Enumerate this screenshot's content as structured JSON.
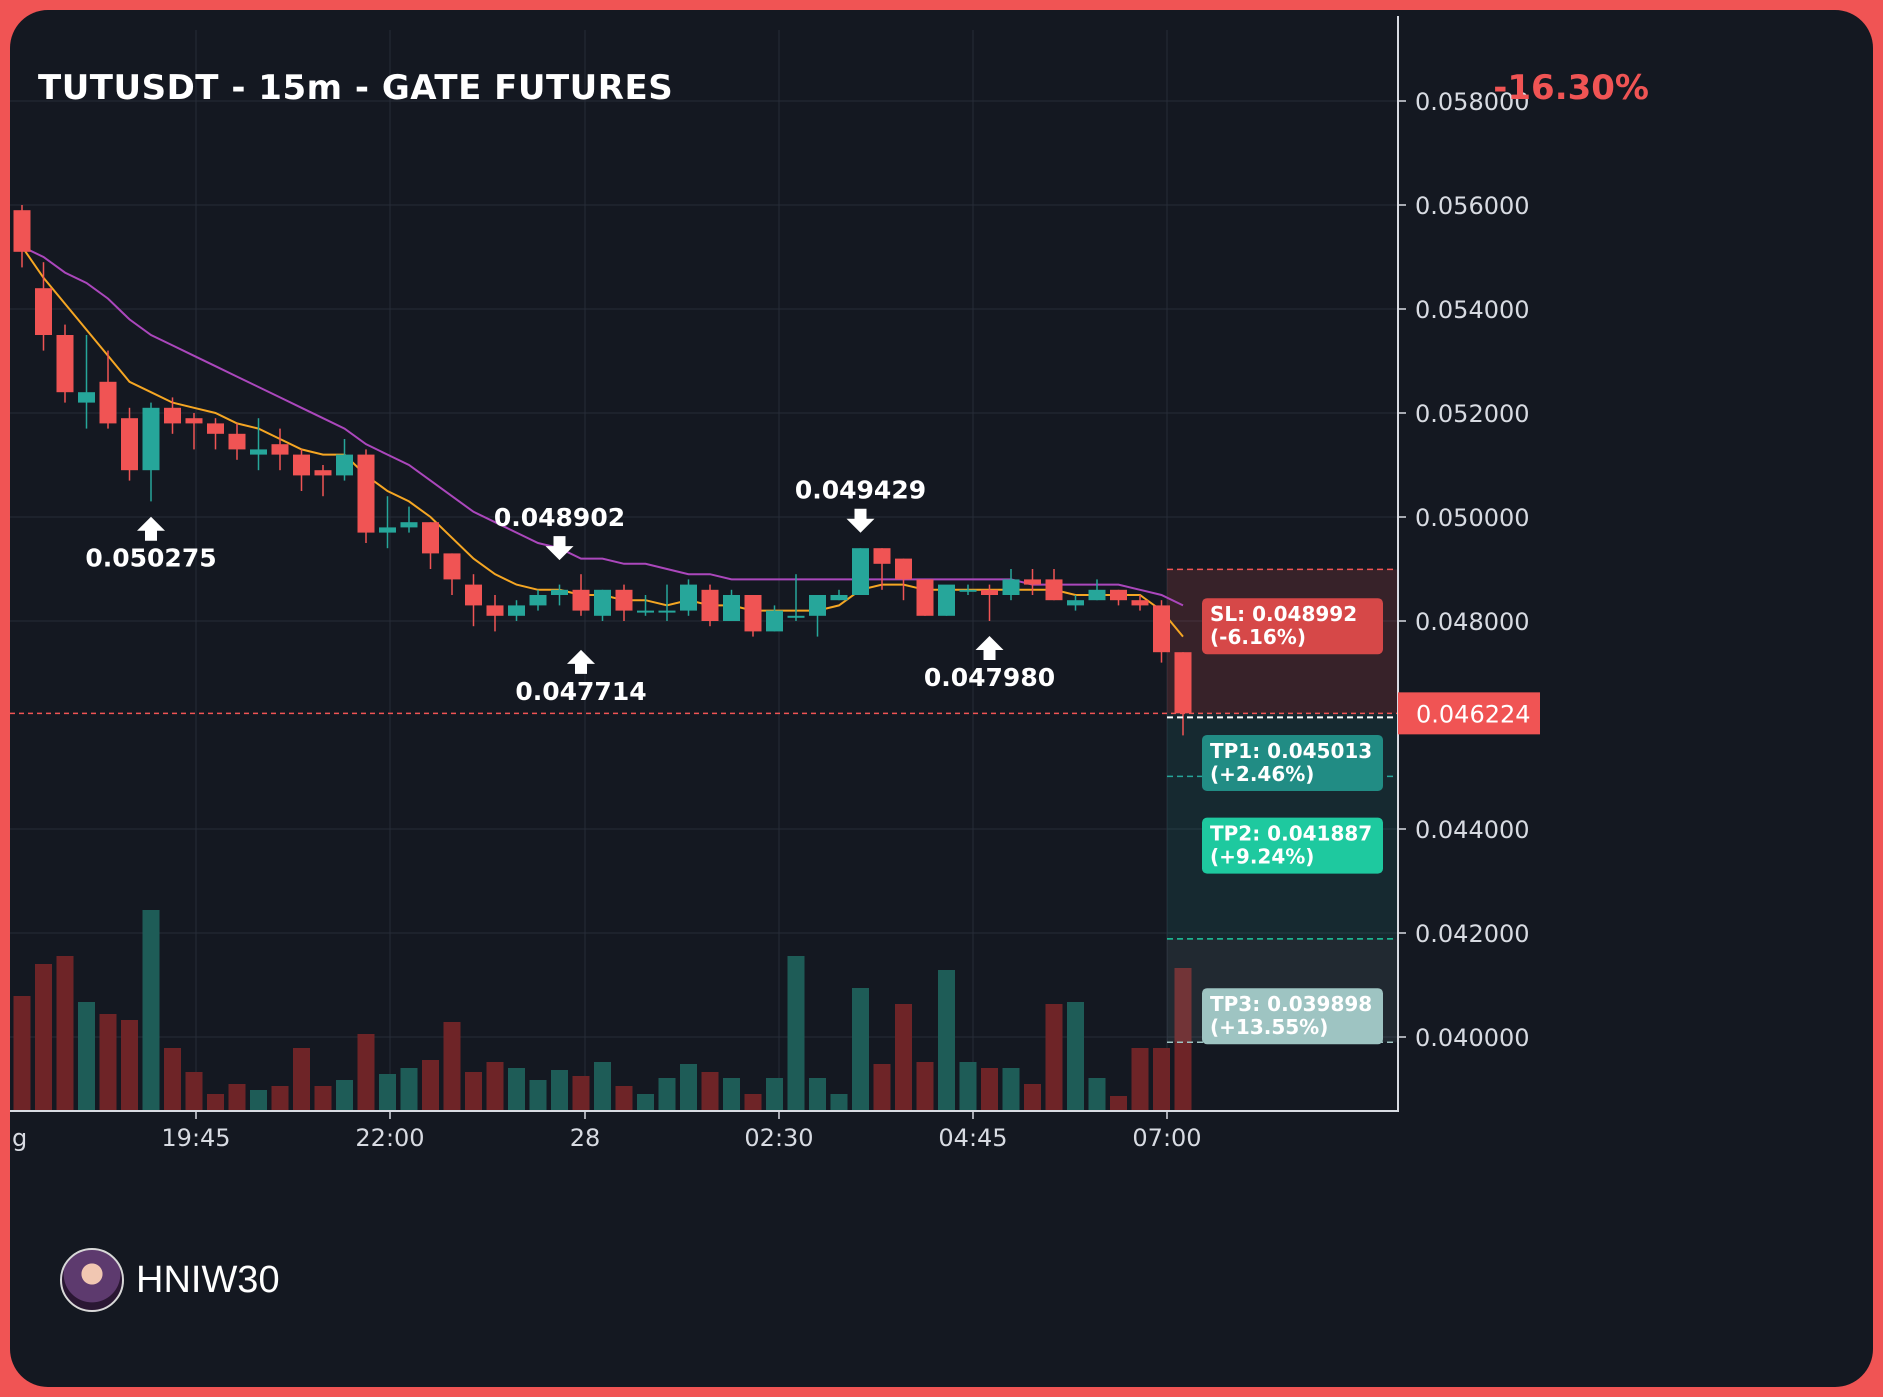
{
  "header": {
    "title": "TUTUSDT - 15m - GATE FUTURES",
    "change": "-16.30%"
  },
  "watermark": {
    "text": "HNIW30"
  },
  "colors": {
    "up": "#26a69a",
    "down": "#f05454",
    "ema_fast": "#f5a623",
    "ema_slow": "#ab47bc",
    "background": "#141821",
    "border": "#f05454"
  },
  "chart_data": {
    "type": "candlestick",
    "title": "TUTUSDT - 15m - GATE FUTURES",
    "price_axis": {
      "ticks": [
        "0.058000",
        "0.056000",
        "0.054000",
        "0.052000",
        "0.050000",
        "0.048000",
        "0.044000",
        "0.042000",
        "0.040000"
      ],
      "range": [
        0.0388,
        0.0595
      ]
    },
    "time_axis": {
      "ticks": [
        "g",
        "19:45",
        "22:00",
        "28",
        "02:30",
        "04:45",
        "07:00"
      ]
    },
    "last_price": "0.046224",
    "candles": [
      {
        "o": 0.0559,
        "h": 0.056,
        "l": 0.0548,
        "c": 0.0551
      },
      {
        "o": 0.0544,
        "h": 0.0549,
        "l": 0.0532,
        "c": 0.0535
      },
      {
        "o": 0.0535,
        "h": 0.0537,
        "l": 0.0522,
        "c": 0.0524
      },
      {
        "o": 0.0522,
        "h": 0.0535,
        "l": 0.0517,
        "c": 0.0524
      },
      {
        "o": 0.0526,
        "h": 0.0532,
        "l": 0.0517,
        "c": 0.0518
      },
      {
        "o": 0.0519,
        "h": 0.0521,
        "l": 0.0507,
        "c": 0.0509
      },
      {
        "o": 0.0509,
        "h": 0.0522,
        "l": 0.0503,
        "c": 0.0521
      },
      {
        "o": 0.0521,
        "h": 0.0523,
        "l": 0.0516,
        "c": 0.0518
      },
      {
        "o": 0.0519,
        "h": 0.052,
        "l": 0.0513,
        "c": 0.0518
      },
      {
        "o": 0.0518,
        "h": 0.0519,
        "l": 0.0513,
        "c": 0.0516
      },
      {
        "o": 0.0516,
        "h": 0.0518,
        "l": 0.0511,
        "c": 0.0513
      },
      {
        "o": 0.0512,
        "h": 0.0519,
        "l": 0.0509,
        "c": 0.0513
      },
      {
        "o": 0.0514,
        "h": 0.0517,
        "l": 0.0509,
        "c": 0.0512
      },
      {
        "o": 0.0512,
        "h": 0.0513,
        "l": 0.0505,
        "c": 0.0508
      },
      {
        "o": 0.0509,
        "h": 0.051,
        "l": 0.0504,
        "c": 0.0508
      },
      {
        "o": 0.0508,
        "h": 0.0515,
        "l": 0.0507,
        "c": 0.0512
      },
      {
        "o": 0.0512,
        "h": 0.0513,
        "l": 0.0495,
        "c": 0.0497
      },
      {
        "o": 0.0497,
        "h": 0.0504,
        "l": 0.0494,
        "c": 0.0498
      },
      {
        "o": 0.0498,
        "h": 0.0502,
        "l": 0.0497,
        "c": 0.0499
      },
      {
        "o": 0.0499,
        "h": 0.0499,
        "l": 0.049,
        "c": 0.0493
      },
      {
        "o": 0.0493,
        "h": 0.0493,
        "l": 0.0485,
        "c": 0.0488
      },
      {
        "o": 0.0487,
        "h": 0.0489,
        "l": 0.0479,
        "c": 0.0483
      },
      {
        "o": 0.0483,
        "h": 0.0485,
        "l": 0.0478,
        "c": 0.0481
      },
      {
        "o": 0.0481,
        "h": 0.0484,
        "l": 0.048,
        "c": 0.0483
      },
      {
        "o": 0.0483,
        "h": 0.0486,
        "l": 0.0482,
        "c": 0.0485
      },
      {
        "o": 0.0485,
        "h": 0.0487,
        "l": 0.0483,
        "c": 0.0486
      },
      {
        "o": 0.0486,
        "h": 0.0489,
        "l": 0.0481,
        "c": 0.0482
      },
      {
        "o": 0.0481,
        "h": 0.0486,
        "l": 0.048,
        "c": 0.0486
      },
      {
        "o": 0.0486,
        "h": 0.0487,
        "l": 0.048,
        "c": 0.0482
      },
      {
        "o": 0.0482,
        "h": 0.0485,
        "l": 0.0481,
        "c": 0.0482
      },
      {
        "o": 0.0482,
        "h": 0.0487,
        "l": 0.048,
        "c": 0.0482
      },
      {
        "o": 0.0482,
        "h": 0.0488,
        "l": 0.0481,
        "c": 0.0487
      },
      {
        "o": 0.0486,
        "h": 0.0487,
        "l": 0.0479,
        "c": 0.048
      },
      {
        "o": 0.048,
        "h": 0.0486,
        "l": 0.048,
        "c": 0.0485
      },
      {
        "o": 0.0485,
        "h": 0.0485,
        "l": 0.0477,
        "c": 0.0478
      },
      {
        "o": 0.0478,
        "h": 0.0483,
        "l": 0.0478,
        "c": 0.0482
      },
      {
        "o": 0.0481,
        "h": 0.0489,
        "l": 0.048,
        "c": 0.0481
      },
      {
        "o": 0.0481,
        "h": 0.0485,
        "l": 0.0477,
        "c": 0.0485
      },
      {
        "o": 0.0484,
        "h": 0.0486,
        "l": 0.0484,
        "c": 0.0485
      },
      {
        "o": 0.0485,
        "h": 0.0494,
        "l": 0.0485,
        "c": 0.0494
      },
      {
        "o": 0.0494,
        "h": 0.0494,
        "l": 0.0486,
        "c": 0.0491
      },
      {
        "o": 0.0492,
        "h": 0.0492,
        "l": 0.0484,
        "c": 0.0488
      },
      {
        "o": 0.0488,
        "h": 0.0488,
        "l": 0.0481,
        "c": 0.0481
      },
      {
        "o": 0.0481,
        "h": 0.0486,
        "l": 0.0481,
        "c": 0.0487
      },
      {
        "o": 0.0486,
        "h": 0.0487,
        "l": 0.0485,
        "c": 0.0486
      },
      {
        "o": 0.0486,
        "h": 0.0487,
        "l": 0.048,
        "c": 0.0485
      },
      {
        "o": 0.0485,
        "h": 0.049,
        "l": 0.0484,
        "c": 0.0488
      },
      {
        "o": 0.0488,
        "h": 0.049,
        "l": 0.0485,
        "c": 0.0487
      },
      {
        "o": 0.0488,
        "h": 0.049,
        "l": 0.0484,
        "c": 0.0484
      },
      {
        "o": 0.0483,
        "h": 0.0485,
        "l": 0.0482,
        "c": 0.0484
      },
      {
        "o": 0.0484,
        "h": 0.0488,
        "l": 0.0484,
        "c": 0.0486
      },
      {
        "o": 0.0486,
        "h": 0.0486,
        "l": 0.0483,
        "c": 0.0484
      },
      {
        "o": 0.0484,
        "h": 0.0485,
        "l": 0.0482,
        "c": 0.0483
      },
      {
        "o": 0.0483,
        "h": 0.0484,
        "l": 0.0472,
        "c": 0.0474
      },
      {
        "o": 0.0474,
        "h": 0.0474,
        "l": 0.0458,
        "c": 0.046224
      }
    ],
    "ema_fast": [
      0.0552,
      0.0546,
      0.0541,
      0.0536,
      0.0531,
      0.0526,
      0.0524,
      0.0522,
      0.0521,
      0.052,
      0.0518,
      0.0517,
      0.0515,
      0.0513,
      0.0512,
      0.0512,
      0.0508,
      0.0505,
      0.0503,
      0.05,
      0.0496,
      0.0492,
      0.0489,
      0.0487,
      0.0486,
      0.0486,
      0.0485,
      0.0485,
      0.0484,
      0.0484,
      0.0483,
      0.0484,
      0.0483,
      0.0483,
      0.0482,
      0.0482,
      0.0482,
      0.0482,
      0.0483,
      0.0486,
      0.0487,
      0.0487,
      0.0486,
      0.0486,
      0.0486,
      0.0486,
      0.0486,
      0.0486,
      0.0486,
      0.0485,
      0.0485,
      0.0485,
      0.0485,
      0.0482,
      0.0477
    ],
    "ema_slow": [
      0.0552,
      0.055,
      0.0547,
      0.0545,
      0.0542,
      0.0538,
      0.0535,
      0.0533,
      0.0531,
      0.0529,
      0.0527,
      0.0525,
      0.0523,
      0.0521,
      0.0519,
      0.0517,
      0.0514,
      0.0512,
      0.051,
      0.0507,
      0.0504,
      0.0501,
      0.0499,
      0.0497,
      0.0495,
      0.0494,
      0.0492,
      0.0492,
      0.0491,
      0.0491,
      0.049,
      0.0489,
      0.0489,
      0.0488,
      0.0488,
      0.0488,
      0.0488,
      0.0488,
      0.0488,
      0.0488,
      0.0488,
      0.0488,
      0.0488,
      0.0488,
      0.0488,
      0.0488,
      0.0488,
      0.0487,
      0.0487,
      0.0487,
      0.0487,
      0.0487,
      0.0486,
      0.0485,
      0.0483
    ],
    "volumes": [
      0.57,
      0.73,
      0.77,
      0.54,
      0.48,
      0.45,
      1.0,
      0.31,
      0.19,
      0.08,
      0.13,
      0.1,
      0.12,
      0.31,
      0.12,
      0.15,
      0.38,
      0.18,
      0.21,
      0.25,
      0.44,
      0.19,
      0.24,
      0.21,
      0.15,
      0.2,
      0.17,
      0.24,
      0.12,
      0.08,
      0.16,
      0.23,
      0.19,
      0.16,
      0.08,
      0.16,
      0.77,
      0.16,
      0.08,
      0.61,
      0.23,
      0.53,
      0.24,
      0.7,
      0.24,
      0.21,
      0.21,
      0.13,
      0.53,
      0.54,
      0.16,
      0.07,
      0.31,
      0.31,
      0.71
    ],
    "swing_labels": [
      {
        "text": "0.050275",
        "index": 6,
        "price": 0.050275,
        "dir": "up"
      },
      {
        "text": "0.048902",
        "index": 25,
        "price": 0.048902,
        "dir": "down"
      },
      {
        "text": "0.047714",
        "index": 26,
        "price": 0.047714,
        "dir": "up"
      },
      {
        "text": "0.049429",
        "index": 39,
        "price": 0.049429,
        "dir": "down"
      },
      {
        "text": "0.047980",
        "index": 45,
        "price": 0.04798,
        "dir": "up"
      }
    ],
    "trade_levels": [
      {
        "name": "sl",
        "label": "SL: 0.048992",
        "sub": "(-6.16%)",
        "price": 0.048992,
        "color": "#d64848",
        "line": "#f05454"
      },
      {
        "name": "tp1",
        "label": "TP1: 0.045013",
        "sub": "(+2.46%)",
        "price": 0.045013,
        "color": "#218c84",
        "line": "#26a69a"
      },
      {
        "name": "tp2",
        "label": "TP2: 0.041887",
        "sub": "(+9.24%)",
        "price": 0.041887,
        "color": "#1ec99f",
        "line": "#1ec99f"
      },
      {
        "name": "tp3",
        "label": "TP3: 0.039898",
        "sub": "(+13.55%)",
        "price": 0.039898,
        "color": "#9ec4c2",
        "line": "#9ec4c2"
      }
    ]
  }
}
